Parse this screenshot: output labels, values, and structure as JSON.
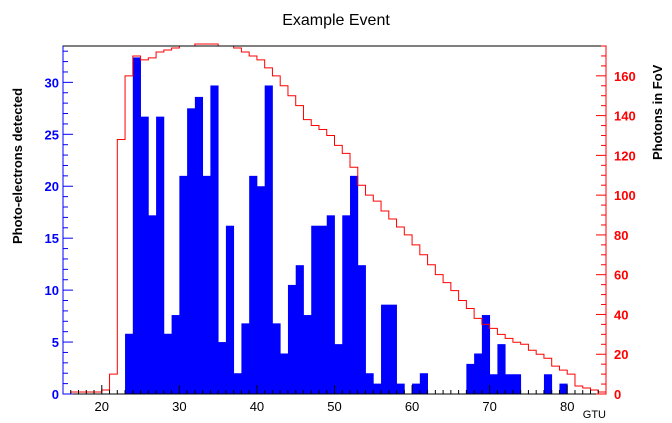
{
  "chart_data": {
    "type": "bar",
    "title": "Example Event",
    "xlabel": "GTU",
    "ylabel_left": "Photo-electrons detected",
    "ylabel_right": "Photons in FoV",
    "xlim": [
      15,
      85
    ],
    "ylim_left": [
      0,
      33.5
    ],
    "ylim_right": [
      0,
      175
    ],
    "x_ticks": [
      20,
      30,
      40,
      50,
      60,
      70,
      80
    ],
    "y_ticks_left": [
      0,
      5,
      10,
      15,
      20,
      25,
      30
    ],
    "y_ticks_right": [
      0,
      20,
      40,
      60,
      80,
      100,
      120,
      140,
      160
    ],
    "colors": {
      "histogram": "#0000ff",
      "photons_line": "#ff0000",
      "left_axis": "#0000ff",
      "right_axis": "#ff0000"
    },
    "series": [
      {
        "name": "Photo-electrons detected",
        "type": "bar",
        "axis": "left",
        "bin_width": 1,
        "x": [
          23,
          24,
          25,
          26,
          27,
          28,
          29,
          30,
          31,
          32,
          33,
          34,
          35,
          36,
          37,
          38,
          39,
          40,
          41,
          42,
          43,
          44,
          45,
          46,
          47,
          48,
          49,
          50,
          51,
          52,
          53,
          54,
          55,
          56,
          57,
          58,
          59,
          60,
          61,
          62,
          63,
          64,
          65,
          66,
          67,
          68,
          69,
          70,
          71,
          72,
          73,
          74,
          75,
          76,
          77,
          78,
          79,
          80
        ],
        "values": [
          5.8,
          32.4,
          26.7,
          17.2,
          26.7,
          5.8,
          7.6,
          21.0,
          27.5,
          28.6,
          21.0,
          29.7,
          5.0,
          16.2,
          2.0,
          6.8,
          21.0,
          20.0,
          29.7,
          6.8,
          3.9,
          10.5,
          12.4,
          7.6,
          16.2,
          16.2,
          17.2,
          4.8,
          17.2,
          21.0,
          12.4,
          2.0,
          1.0,
          8.6,
          8.6,
          1.0,
          0,
          1.0,
          2.0,
          0,
          0,
          0,
          0,
          0,
          2.9,
          3.9,
          7.6,
          1.9,
          4.8,
          1.9,
          1.9,
          0,
          0,
          0,
          1.9,
          0,
          1.0,
          0
        ]
      },
      {
        "name": "Photons in FoV",
        "type": "step",
        "axis": "right",
        "bin_width": 1,
        "x": [
          15,
          16,
          17,
          18,
          19,
          20,
          21,
          22,
          23,
          24,
          25,
          26,
          27,
          28,
          29,
          30,
          31,
          32,
          33,
          34,
          35,
          36,
          37,
          38,
          39,
          40,
          41,
          42,
          43,
          44,
          45,
          46,
          47,
          48,
          49,
          50,
          51,
          52,
          53,
          54,
          55,
          56,
          57,
          58,
          59,
          60,
          61,
          62,
          63,
          64,
          65,
          66,
          67,
          68,
          69,
          70,
          71,
          72,
          73,
          74,
          75,
          76,
          77,
          78,
          79,
          80,
          81,
          82,
          83,
          84
        ],
        "values": [
          0,
          1,
          1,
          1,
          1,
          2,
          10,
          128,
          160,
          170,
          168,
          169,
          172,
          173,
          174,
          175,
          175,
          176,
          176,
          176,
          175,
          175,
          174,
          172,
          170,
          168,
          164,
          160,
          155,
          150,
          145,
          138,
          135,
          133,
          130,
          125,
          121,
          114,
          105,
          100,
          97,
          92,
          88,
          84,
          80,
          75,
          70,
          65,
          60,
          56,
          52,
          47,
          43,
          38,
          35,
          33,
          30,
          28,
          26,
          25,
          22,
          20,
          18,
          14,
          12,
          10,
          4,
          3,
          2,
          1
        ]
      }
    ]
  }
}
